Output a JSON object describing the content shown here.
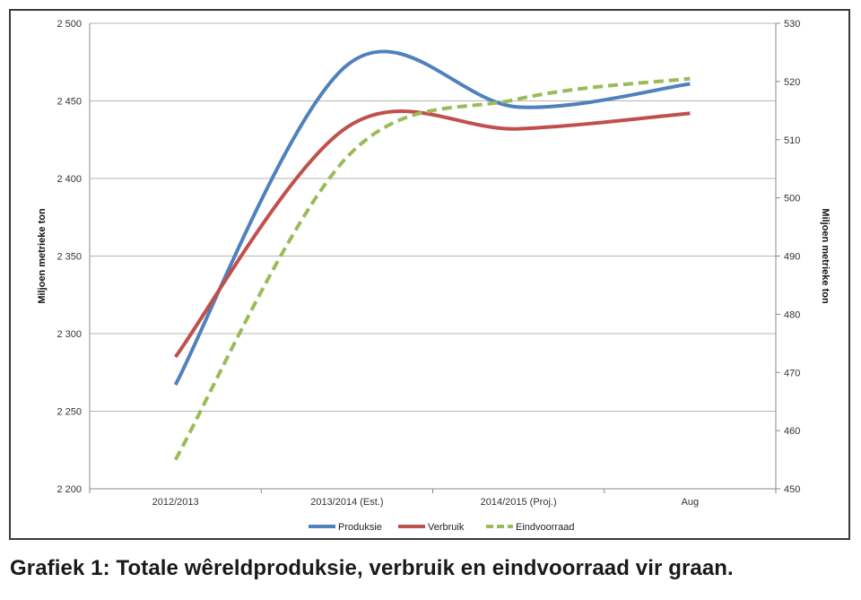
{
  "caption": "Grafiek 1: Totale wêreldproduksie, verbruik en eindvoorraad vir graan.",
  "chart_data": {
    "type": "line",
    "categories": [
      "2012/2013",
      "2013/2014 (Est.)",
      "2014/2015 (Proj.)",
      "Aug"
    ],
    "y_left": {
      "label": "Miljoen metrieke ton",
      "min": 2200,
      "max": 2500,
      "step": 50,
      "tick_labels": [
        "2 200",
        "2 250",
        "2 300",
        "2 350",
        "2 400",
        "2 450",
        "2 500"
      ]
    },
    "y_right": {
      "label": "Miljoen metrieke ton",
      "min": 450,
      "max": 530,
      "step": 10,
      "tick_labels": [
        "450",
        "460",
        "470",
        "480",
        "490",
        "500",
        "510",
        "520",
        "530"
      ]
    },
    "grid": true,
    "legend_position": "bottom",
    "series": [
      {
        "name": "Produksie",
        "axis": "left",
        "color": "#4f81bd",
        "dash": false,
        "values": [
          2267,
          2473,
          2446,
          2461
        ]
      },
      {
        "name": "Verbruik",
        "axis": "left",
        "color": "#c0504d",
        "dash": false,
        "values": [
          2285,
          2433,
          2432,
          2442
        ]
      },
      {
        "name": "Eindvoorraad",
        "axis": "right",
        "color": "#9bbb59",
        "dash": true,
        "values": [
          455,
          507,
          517,
          520.5
        ]
      }
    ]
  }
}
